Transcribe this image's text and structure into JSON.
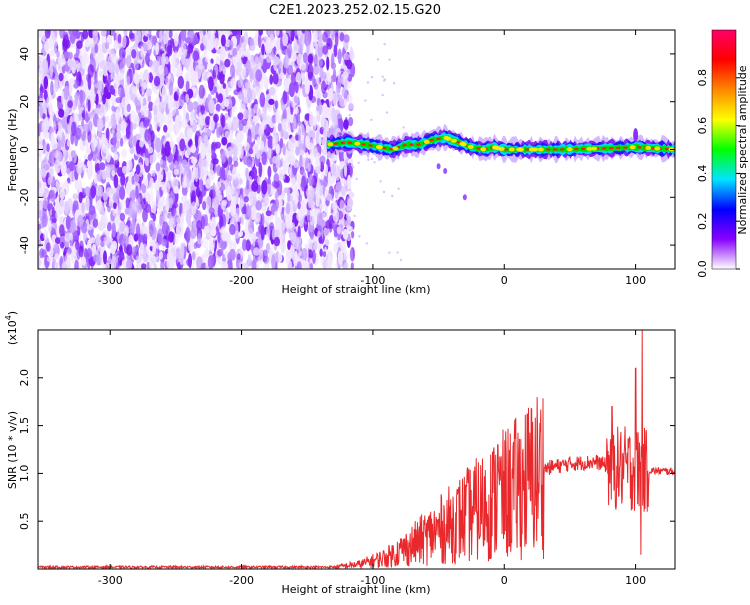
{
  "title": "C2E1.2023.252.02.15.G20",
  "chart_data": [
    {
      "type": "heatmap",
      "name": "spectrogram",
      "xlabel": "Height of straight line (km)",
      "ylabel": "Frequency (Hz)",
      "xlim": [
        -355,
        130
      ],
      "ylim": [
        -50,
        50
      ],
      "xticks": [
        -300,
        -200,
        -100,
        0,
        100
      ],
      "yticks": [
        -40,
        -20,
        0,
        20,
        40
      ],
      "noise_region_x": [
        -355,
        -120
      ],
      "signal_start_x": -135,
      "signal_track": [
        {
          "x": -135,
          "f": 2
        },
        {
          "x": -120,
          "f": 3
        },
        {
          "x": -105,
          "f": 2
        },
        {
          "x": -95,
          "f": 1
        },
        {
          "x": -85,
          "f": 0
        },
        {
          "x": -75,
          "f": 2
        },
        {
          "x": -65,
          "f": 2
        },
        {
          "x": -55,
          "f": 4
        },
        {
          "x": -45,
          "f": 5
        },
        {
          "x": -35,
          "f": 3
        },
        {
          "x": -25,
          "f": 1
        },
        {
          "x": -15,
          "f": 0
        },
        {
          "x": -8,
          "f": 1
        },
        {
          "x": 0,
          "f": 0
        },
        {
          "x": 40,
          "f": 0
        },
        {
          "x": 80,
          "f": 0.5
        },
        {
          "x": 100,
          "f": 1
        },
        {
          "x": 130,
          "f": 0
        }
      ],
      "colorbar": {
        "label": "Normalized spectral amplitude",
        "ticks": [
          0.0,
          0.2,
          0.4,
          0.6,
          0.8
        ],
        "range": [
          0,
          1
        ],
        "colors": [
          "#ffffff",
          "#8800ff",
          "#0000ff",
          "#00e5ff",
          "#00ff00",
          "#ffff00",
          "#ff8800",
          "#ff0000",
          "#ff0066"
        ]
      }
    },
    {
      "type": "line",
      "name": "snr",
      "xlabel": "Height of straight line (km)",
      "ylabel": "SNR (10 * v/v)",
      "yscale_label": "(x10",
      "yscale_exp": "4",
      "xlim": [
        -355,
        130
      ],
      "ylim": [
        0,
        2.5
      ],
      "xticks": [
        -300,
        -200,
        -100,
        0,
        100
      ],
      "yticks": [
        0.5,
        1.0,
        1.5,
        2.0
      ],
      "color": "#e8282b",
      "envelope": [
        {
          "x": -355,
          "y": 0.02
        },
        {
          "x": -130,
          "y": 0.02
        },
        {
          "x": -110,
          "y": 0.05
        },
        {
          "x": -90,
          "y": 0.12
        },
        {
          "x": -70,
          "y": 0.25
        },
        {
          "x": -50,
          "y": 0.4
        },
        {
          "x": -30,
          "y": 0.55
        },
        {
          "x": -10,
          "y": 0.7
        },
        {
          "x": 10,
          "y": 0.85
        },
        {
          "x": 30,
          "y": 1.05
        },
        {
          "x": 50,
          "y": 1.1
        },
        {
          "x": 70,
          "y": 1.12
        },
        {
          "x": 85,
          "y": 1.05
        },
        {
          "x": 95,
          "y": 1.05
        },
        {
          "x": 105,
          "y": 1.03
        },
        {
          "x": 130,
          "y": 1.02
        }
      ],
      "spikes": [
        {
          "x": -5,
          "y": 1.3
        },
        {
          "x": 82,
          "y": 1.7
        },
        {
          "x": 100,
          "y": 2.1
        },
        {
          "x": 104,
          "y": 0.15
        },
        {
          "x": 105,
          "y": 2.5
        }
      ]
    }
  ]
}
